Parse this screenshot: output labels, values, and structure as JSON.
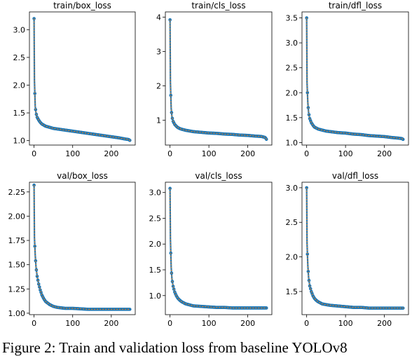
{
  "figure": {
    "caption": "Figure 2: Train and validation loss from baseline YOLOv8"
  },
  "chart_data": [
    {
      "type": "line",
      "title": "train/box_loss",
      "xlim": [
        -12,
        262
      ],
      "ylim": [
        0.92,
        3.32
      ],
      "xticks": [
        0,
        100,
        200
      ],
      "yticks": [
        1.0,
        1.5,
        2.0,
        2.5,
        3.0
      ],
      "ytick_labels": [
        "1.0",
        "1.5",
        "2.0",
        "2.5",
        "3.0"
      ],
      "points": [
        [
          0,
          3.2
        ],
        [
          1,
          2.08
        ],
        [
          3,
          1.62
        ],
        [
          5,
          1.5
        ],
        [
          8,
          1.42
        ],
        [
          12,
          1.37
        ],
        [
          16,
          1.33
        ],
        [
          20,
          1.3
        ],
        [
          25,
          1.28
        ],
        [
          30,
          1.26
        ],
        [
          40,
          1.24
        ],
        [
          50,
          1.22
        ],
        [
          60,
          1.21
        ],
        [
          80,
          1.19
        ],
        [
          100,
          1.17
        ],
        [
          120,
          1.15
        ],
        [
          140,
          1.13
        ],
        [
          160,
          1.11
        ],
        [
          180,
          1.09
        ],
        [
          200,
          1.07
        ],
        [
          220,
          1.05
        ],
        [
          235,
          1.03
        ],
        [
          245,
          1.02
        ],
        [
          249,
          1.0
        ]
      ]
    },
    {
      "type": "line",
      "title": "train/cls_loss",
      "xlim": [
        -12,
        262
      ],
      "ylim": [
        0.28,
        4.15
      ],
      "xticks": [
        0,
        100,
        200
      ],
      "yticks": [
        1,
        2,
        3,
        4
      ],
      "ytick_labels": [
        "1",
        "2",
        "3",
        "4"
      ],
      "points": [
        [
          0,
          3.92
        ],
        [
          1,
          2.1
        ],
        [
          3,
          1.35
        ],
        [
          5,
          1.1
        ],
        [
          8,
          0.97
        ],
        [
          12,
          0.88
        ],
        [
          16,
          0.83
        ],
        [
          20,
          0.79
        ],
        [
          25,
          0.76
        ],
        [
          30,
          0.74
        ],
        [
          40,
          0.71
        ],
        [
          50,
          0.69
        ],
        [
          60,
          0.67
        ],
        [
          80,
          0.65
        ],
        [
          100,
          0.63
        ],
        [
          120,
          0.62
        ],
        [
          140,
          0.6
        ],
        [
          160,
          0.59
        ],
        [
          180,
          0.57
        ],
        [
          200,
          0.56
        ],
        [
          220,
          0.54
        ],
        [
          235,
          0.53
        ],
        [
          245,
          0.5
        ],
        [
          249,
          0.43
        ]
      ]
    },
    {
      "type": "line",
      "title": "train/dfl_loss",
      "xlim": [
        -12,
        262
      ],
      "ylim": [
        0.95,
        3.62
      ],
      "xticks": [
        0,
        100,
        200
      ],
      "yticks": [
        1.0,
        1.5,
        2.0,
        2.5,
        3.0,
        3.5
      ],
      "ytick_labels": [
        "1.0",
        "1.5",
        "2.0",
        "2.5",
        "3.0",
        "3.5"
      ],
      "points": [
        [
          0,
          3.5
        ],
        [
          1,
          2.2
        ],
        [
          3,
          1.8
        ],
        [
          5,
          1.6
        ],
        [
          8,
          1.48
        ],
        [
          12,
          1.4
        ],
        [
          16,
          1.35
        ],
        [
          20,
          1.31
        ],
        [
          25,
          1.29
        ],
        [
          30,
          1.27
        ],
        [
          40,
          1.25
        ],
        [
          50,
          1.23
        ],
        [
          60,
          1.22
        ],
        [
          80,
          1.2
        ],
        [
          100,
          1.19
        ],
        [
          120,
          1.17
        ],
        [
          140,
          1.16
        ],
        [
          160,
          1.14
        ],
        [
          180,
          1.13
        ],
        [
          200,
          1.12
        ],
        [
          220,
          1.1
        ],
        [
          235,
          1.09
        ],
        [
          245,
          1.08
        ],
        [
          249,
          1.06
        ]
      ]
    },
    {
      "type": "line",
      "title": "val/box_loss",
      "xlim": [
        -12,
        262
      ],
      "ylim": [
        0.985,
        2.35
      ],
      "xticks": [
        0,
        100,
        200
      ],
      "yticks": [
        1.0,
        1.25,
        1.5,
        1.75,
        2.0,
        2.25
      ],
      "ytick_labels": [
        "1.00",
        "1.25",
        "1.50",
        "1.75",
        "2.00",
        "2.25"
      ],
      "points": [
        [
          0,
          2.32
        ],
        [
          1,
          1.78
        ],
        [
          3,
          1.6
        ],
        [
          5,
          1.48
        ],
        [
          8,
          1.38
        ],
        [
          12,
          1.3
        ],
        [
          16,
          1.24
        ],
        [
          20,
          1.19
        ],
        [
          25,
          1.15
        ],
        [
          30,
          1.12
        ],
        [
          40,
          1.09
        ],
        [
          50,
          1.07
        ],
        [
          60,
          1.06
        ],
        [
          80,
          1.05
        ],
        [
          100,
          1.05
        ],
        [
          120,
          1.045
        ],
        [
          140,
          1.04
        ],
        [
          160,
          1.04
        ],
        [
          180,
          1.04
        ],
        [
          200,
          1.04
        ],
        [
          220,
          1.04
        ],
        [
          235,
          1.04
        ],
        [
          245,
          1.04
        ],
        [
          249,
          1.04
        ]
      ]
    },
    {
      "type": "line",
      "title": "val/cls_loss",
      "xlim": [
        -12,
        262
      ],
      "ylim": [
        0.63,
        3.2
      ],
      "xticks": [
        0,
        100,
        200
      ],
      "yticks": [
        1.0,
        1.5,
        2.0,
        2.5,
        3.0
      ],
      "ytick_labels": [
        "1.0",
        "1.5",
        "2.0",
        "2.5",
        "3.0"
      ],
      "points": [
        [
          0,
          3.08
        ],
        [
          1,
          2.1
        ],
        [
          3,
          1.55
        ],
        [
          5,
          1.32
        ],
        [
          8,
          1.18
        ],
        [
          12,
          1.07
        ],
        [
          16,
          1.0
        ],
        [
          20,
          0.95
        ],
        [
          25,
          0.91
        ],
        [
          30,
          0.88
        ],
        [
          40,
          0.84
        ],
        [
          50,
          0.82
        ],
        [
          60,
          0.8
        ],
        [
          80,
          0.79
        ],
        [
          100,
          0.78
        ],
        [
          120,
          0.77
        ],
        [
          140,
          0.77
        ],
        [
          160,
          0.76
        ],
        [
          180,
          0.76
        ],
        [
          200,
          0.76
        ],
        [
          220,
          0.76
        ],
        [
          235,
          0.76
        ],
        [
          245,
          0.76
        ],
        [
          249,
          0.76
        ]
      ]
    },
    {
      "type": "line",
      "title": "val/dfl_loss",
      "xlim": [
        -12,
        262
      ],
      "ylim": [
        1.165,
        3.08
      ],
      "xticks": [
        0,
        100,
        200
      ],
      "yticks": [
        1.5,
        2.0,
        2.5,
        3.0
      ],
      "ytick_labels": [
        "1.5",
        "2.0",
        "2.5",
        "3.0"
      ],
      "points": [
        [
          0,
          3.0
        ],
        [
          1,
          2.2
        ],
        [
          3,
          1.88
        ],
        [
          5,
          1.7
        ],
        [
          8,
          1.58
        ],
        [
          12,
          1.5
        ],
        [
          16,
          1.44
        ],
        [
          20,
          1.4
        ],
        [
          25,
          1.37
        ],
        [
          30,
          1.35
        ],
        [
          40,
          1.32
        ],
        [
          50,
          1.31
        ],
        [
          60,
          1.3
        ],
        [
          80,
          1.29
        ],
        [
          100,
          1.28
        ],
        [
          120,
          1.27
        ],
        [
          140,
          1.27
        ],
        [
          160,
          1.26
        ],
        [
          180,
          1.26
        ],
        [
          200,
          1.26
        ],
        [
          220,
          1.26
        ],
        [
          235,
          1.26
        ],
        [
          245,
          1.26
        ],
        [
          249,
          1.26
        ]
      ]
    }
  ]
}
